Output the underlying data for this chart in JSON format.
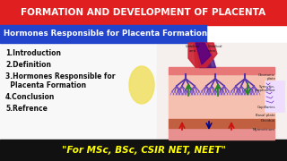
{
  "title": "FORMATION AND DEVELOPMENT OF PLACENTA",
  "subtitle": "Hormones Responsible for Placenta Formation",
  "body_lines": [
    "1.Introduction",
    "2.Definition",
    "3.Hormones Responsible for",
    "  Placenta Formation",
    "4.Conclusion",
    "5.Refrence"
  ],
  "footer": "\"For MSc, BSc, CSIR NET, NEET\"",
  "title_bg": "#e02020",
  "title_color": "#ffffff",
  "subtitle_bg": "#2244cc",
  "subtitle_color": "#ffffff",
  "body_bg": "#ffffff",
  "footer_bg": "#111111",
  "footer_color": "#ffff00",
  "diagram_bg": "#f5c8b8",
  "fig_bg": "#ffffff",
  "yolk_color": "#f0e060"
}
